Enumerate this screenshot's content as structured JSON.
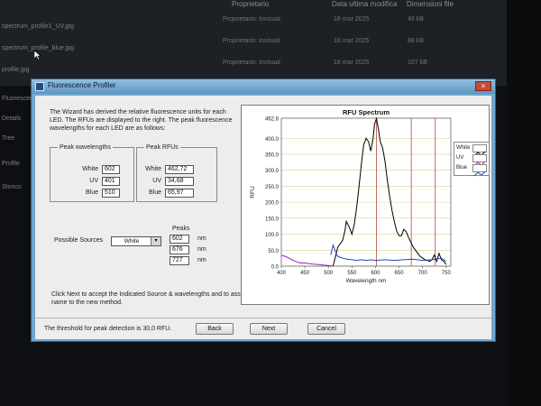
{
  "background": {
    "header_columns": [
      "Proprietario",
      "Data ultima modifica",
      "Dimensioni file"
    ],
    "rows": [
      {
        "owner": "Proprietario: Invisual",
        "date": "18 mar 2025",
        "size": "46 kB"
      },
      {
        "owner": "Proprietario: Invisual",
        "date": "18 mar 2025",
        "size": "88 kB"
      },
      {
        "owner": "Proprietario: Invisual",
        "date": "18 mar 2025",
        "size": "107 kB"
      }
    ],
    "left_items": [
      "spectrum_profile1_UV.jpg",
      "spectrum_profile_blue.jpg",
      "profile.jpg",
      "Fluorescence",
      "Details",
      "Tree",
      "Profile",
      "Storico"
    ]
  },
  "window": {
    "title": "Fluorescence Profiler",
    "close": "×"
  },
  "wizard_text": "The Wizard has derived the relative fluorescence units for each LED.  The RFUs are displayed to the right.  The peak fluorescence wavelengths for each LED are as follows:",
  "peak_wavelengths": {
    "legend": "Peak wavelengths",
    "items": [
      {
        "label": "White",
        "value": "602"
      },
      {
        "label": "UV",
        "value": "401"
      },
      {
        "label": "Blue",
        "value": "510"
      }
    ]
  },
  "peak_rfus": {
    "legend": "Peak RFUs",
    "items": [
      {
        "label": "White",
        "value": "462,72"
      },
      {
        "label": "UV",
        "value": "34,68"
      },
      {
        "label": "Blue",
        "value": "65,97"
      }
    ]
  },
  "possible_sources": {
    "label": "Possible Sources",
    "selected": "White",
    "arrow": "▾"
  },
  "peaks": {
    "label": "Peaks",
    "values": [
      "602",
      "676",
      "727"
    ],
    "unit": "nm"
  },
  "instructions": "Click Next to accept the Indicated Source & wavelengths and to assign a name to the new method.",
  "threshold_text": "The threshold for peak detection is 30,0 RFU.",
  "buttons": {
    "back": "Back",
    "next": "Next",
    "cancel": "Cancel"
  },
  "colors": {
    "white_series": "#000000",
    "uv_series": "#9b1fc4",
    "blue_series": "#2649b8",
    "peak_lines": "#b2473a",
    "grid": "#d8d08a"
  },
  "chart_data": {
    "type": "line",
    "title": "RFU Spectrum",
    "xlabel": "Wavelength nm",
    "ylabel": "RFU",
    "xlim": [
      400,
      760
    ],
    "ylim": [
      0,
      462.8
    ],
    "x_ticks": [
      400,
      450,
      500,
      550,
      600,
      650,
      700,
      750
    ],
    "y_ticks": [
      0,
      50,
      100,
      150,
      200,
      250,
      300,
      350,
      400,
      462.8
    ],
    "y_tick_labels": [
      "0.0",
      "50.0",
      "100.0",
      "150.0",
      "200.0",
      "250.0",
      "300.0",
      "350.0",
      "400.0",
      "462.8"
    ],
    "grid": true,
    "legend_position": "top-right",
    "peak_markers": [
      602,
      676,
      727
    ],
    "series": [
      {
        "name": "White",
        "color": "#000000",
        "x": [
          510,
          520,
          530,
          535,
          538,
          545,
          550,
          555,
          560,
          565,
          570,
          575,
          580,
          585,
          590,
          595,
          598,
          602,
          606,
          610,
          615,
          620,
          625,
          630,
          635,
          640,
          645,
          650,
          655,
          660,
          665,
          670,
          675,
          680,
          685,
          690,
          695,
          700,
          705,
          710,
          715,
          720,
          725,
          730,
          735,
          740,
          745,
          750
        ],
        "y": [
          0,
          60,
          80,
          110,
          140,
          120,
          100,
          130,
          185,
          250,
          320,
          380,
          400,
          390,
          360,
          400,
          445,
          462,
          430,
          390,
          370,
          330,
          270,
          220,
          175,
          140,
          110,
          95,
          95,
          115,
          108,
          90,
          75,
          60,
          50,
          40,
          30,
          25,
          20,
          18,
          15,
          20,
          35,
          15,
          40,
          20,
          15,
          5
        ]
      },
      {
        "name": "UV",
        "color": "#9b1fc4",
        "x": [
          400,
          410,
          420,
          430,
          440,
          450,
          460,
          470,
          480,
          490,
          500,
          505,
          510
        ],
        "y": [
          34,
          30,
          22,
          15,
          10,
          10,
          8,
          6,
          5,
          3,
          2,
          1,
          0
        ]
      },
      {
        "name": "Blue",
        "color": "#2649b8",
        "x": [
          505,
          510,
          515,
          520,
          530,
          540,
          550,
          560,
          570,
          580,
          590,
          600,
          620,
          640,
          660,
          680,
          700,
          720,
          740,
          750
        ],
        "y": [
          35,
          66,
          45,
          30,
          25,
          22,
          20,
          18,
          20,
          18,
          20,
          18,
          20,
          18,
          20,
          22,
          18,
          20,
          25,
          15
        ]
      }
    ]
  }
}
